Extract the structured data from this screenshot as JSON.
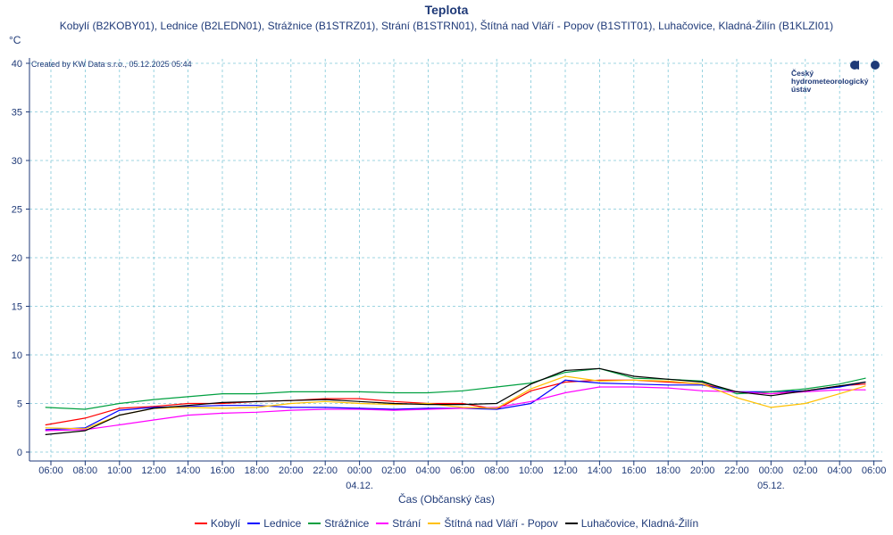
{
  "title": "Teplota",
  "subtitle": "Kobylí (B2KOBY01), Lednice (B2LEDN01), Strážnice (B1STRZ01), Strání (B1STRN01), Štítná nad Vláří - Popov (B1STIT01), Luhačovice, Kladná-Žilín (B1KLZI01)",
  "credit": "Created by KW Data s.r.o., 05.12.2025 05:44",
  "logo": [
    "Český",
    "hydrometeorologický",
    "ústav"
  ],
  "chart_data": {
    "type": "line",
    "title": "Teplota",
    "ylabel": "°C",
    "xlabel": "Čas (Občanský čas)",
    "ylim": [
      0,
      40
    ],
    "yticks": [
      "0",
      "5",
      "10",
      "15",
      "20",
      "25",
      "30",
      "35",
      "40"
    ],
    "xlim_hours": [
      -1.3,
      48.5
    ],
    "xticks": [
      "06:00",
      "08:00",
      "10:00",
      "12:00",
      "14:00",
      "16:00",
      "18:00",
      "20:00",
      "22:00",
      "00:00",
      "02:00",
      "04:00",
      "06:00",
      "08:00",
      "10:00",
      "12:00",
      "14:00",
      "16:00",
      "18:00",
      "20:00",
      "22:00",
      "00:00",
      "02:00",
      "04:00",
      "06:00"
    ],
    "date_labels": [
      {
        "label": "04.12.",
        "hour": 18
      },
      {
        "label": "05.12.",
        "hour": 42
      }
    ],
    "grid": true,
    "legend_position": "bottom",
    "x_hours_from_first_tick": [
      -0.3,
      2,
      4,
      6,
      8,
      10,
      12,
      14,
      16,
      18,
      20,
      22,
      24,
      26,
      28,
      30,
      32,
      34,
      36,
      38,
      40,
      42,
      44,
      46,
      47.5
    ],
    "series": [
      {
        "name": "Kobylí",
        "color": "#ff0000",
        "values": [
          2.8,
          3.5,
          4.5,
          4.7,
          5.0,
          5.0,
          5.2,
          5.3,
          5.5,
          5.5,
          5.2,
          5.0,
          5.0,
          4.4,
          6.3,
          7.2,
          7.4,
          7.4,
          7.2,
          7.0,
          6.2,
          6.0,
          6.3,
          6.8,
          7.0
        ]
      },
      {
        "name": "Lednice",
        "color": "#0000ff",
        "values": [
          2.3,
          2.5,
          4.3,
          4.6,
          4.7,
          4.8,
          4.8,
          4.6,
          4.6,
          4.5,
          4.4,
          4.5,
          4.5,
          4.4,
          5.0,
          7.4,
          7.1,
          7.0,
          6.9,
          6.9,
          6.2,
          6.2,
          6.3,
          6.7,
          7.2
        ]
      },
      {
        "name": "Strážnice",
        "color": "#00a040",
        "values": [
          4.6,
          4.4,
          5.0,
          5.4,
          5.7,
          6.0,
          6.0,
          6.2,
          6.2,
          6.2,
          6.1,
          6.1,
          6.3,
          6.7,
          7.1,
          8.2,
          8.6,
          7.6,
          7.5,
          7.3,
          6.0,
          6.2,
          6.5,
          7.0,
          7.6
        ]
      },
      {
        "name": "Strání",
        "color": "#ff00ff",
        "values": [
          2.2,
          2.3,
          2.8,
          3.3,
          3.8,
          4.0,
          4.1,
          4.3,
          4.4,
          4.4,
          4.3,
          4.4,
          4.5,
          4.6,
          5.2,
          6.1,
          6.7,
          6.7,
          6.6,
          6.3,
          6.2,
          6.0,
          6.2,
          6.4,
          6.4
        ]
      },
      {
        "name": "Štítná nad Vláří - Popov",
        "color": "#ffc000",
        "values": [
          2.5,
          2.4,
          3.8,
          4.5,
          4.6,
          4.5,
          4.6,
          5.0,
          5.2,
          5.0,
          4.9,
          5.0,
          4.6,
          4.5,
          6.5,
          7.8,
          7.3,
          7.4,
          7.3,
          7.0,
          5.6,
          4.6,
          5.0,
          6.0,
          6.8
        ]
      },
      {
        "name": "Luhačovice, Kladná-Žilín",
        "color": "#000000",
        "values": [
          1.8,
          2.2,
          3.8,
          4.5,
          4.8,
          5.1,
          5.2,
          5.3,
          5.4,
          5.2,
          5.0,
          4.9,
          4.9,
          5.0,
          7.0,
          8.4,
          8.6,
          7.8,
          7.5,
          7.2,
          6.2,
          5.8,
          6.3,
          6.8,
          7.2
        ]
      }
    ]
  }
}
